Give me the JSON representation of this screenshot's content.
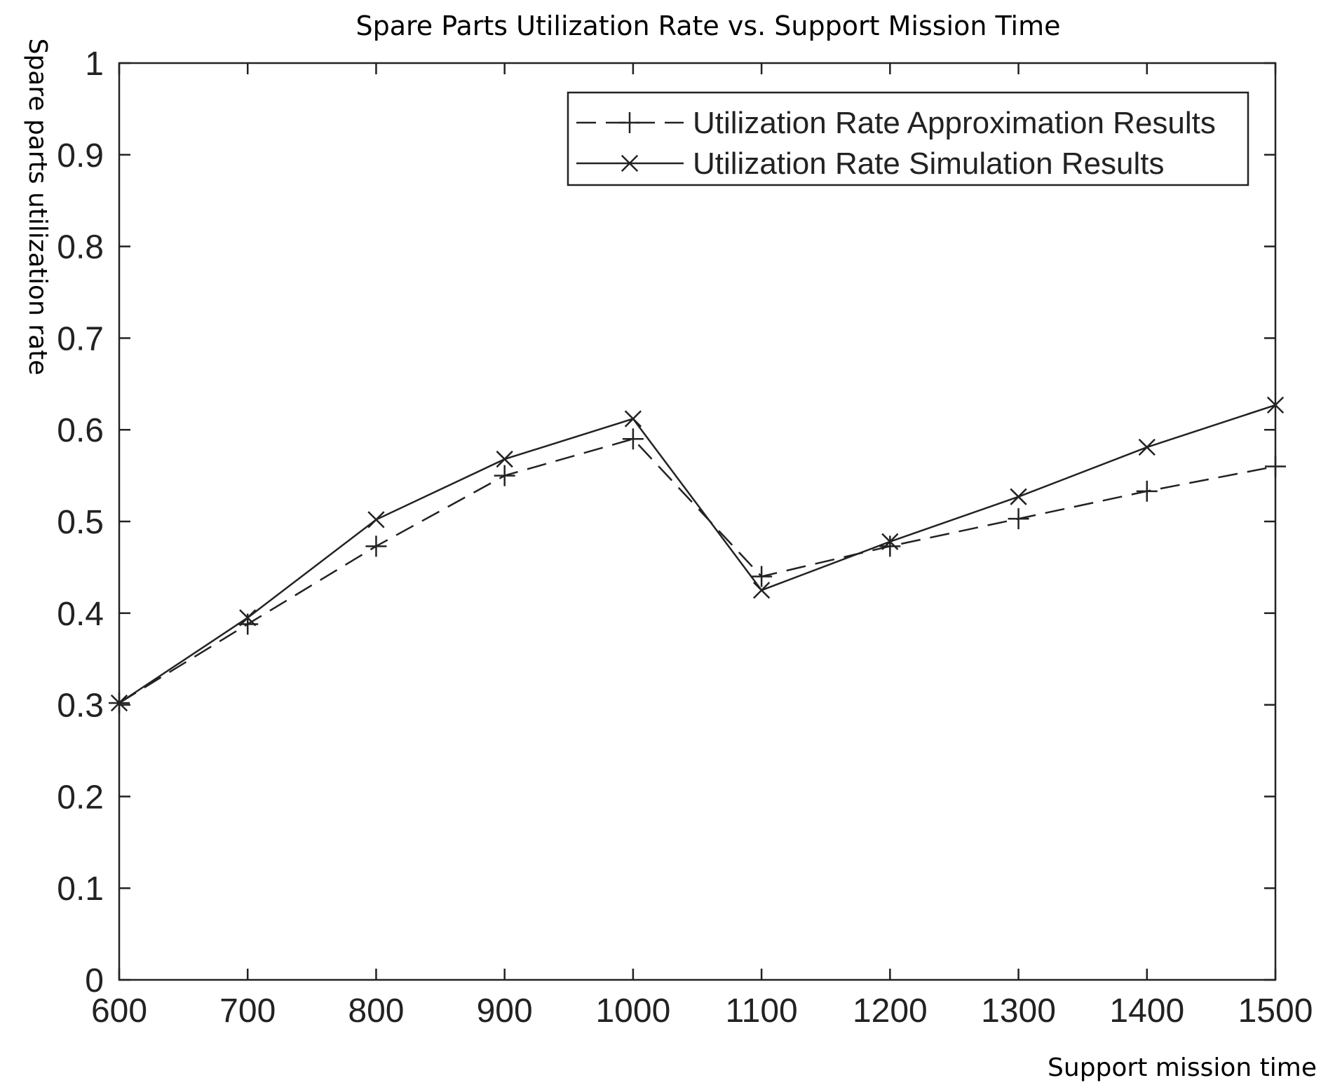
{
  "chart_data": {
    "type": "line",
    "title": "Spare Parts Utilization Rate vs. Support Mission Time",
    "xlabel": "Support mission time",
    "ylabel": "Spare parts utilization rate",
    "xlim": [
      600,
      1500
    ],
    "ylim": [
      0,
      1
    ],
    "x_ticks": [
      "600",
      "700",
      "800",
      "900",
      "1000",
      "1100",
      "1200",
      "1300",
      "1400",
      "1500"
    ],
    "y_ticks": [
      "0",
      "0.1",
      "0.2",
      "0.3",
      "0.4",
      "0.5",
      "0.6",
      "0.7",
      "0.8",
      "0.9",
      "1"
    ],
    "x": [
      600,
      700,
      800,
      900,
      1000,
      1100,
      1200,
      1300,
      1400,
      1500
    ],
    "series": [
      {
        "name": "Utilization Rate Approximation Results",
        "line_style": "dashed",
        "marker": "plus",
        "color": "#222222",
        "values": [
          0.302,
          0.388,
          0.473,
          0.55,
          0.59,
          0.44,
          0.473,
          0.503,
          0.533,
          0.56
        ]
      },
      {
        "name": "Utilization Rate Simulation Results",
        "line_style": "solid",
        "marker": "cross",
        "color": "#222222",
        "values": [
          0.302,
          0.395,
          0.502,
          0.568,
          0.612,
          0.425,
          0.478,
          0.527,
          0.581,
          0.627
        ]
      }
    ],
    "grid": false,
    "legend_position": "top-right"
  }
}
